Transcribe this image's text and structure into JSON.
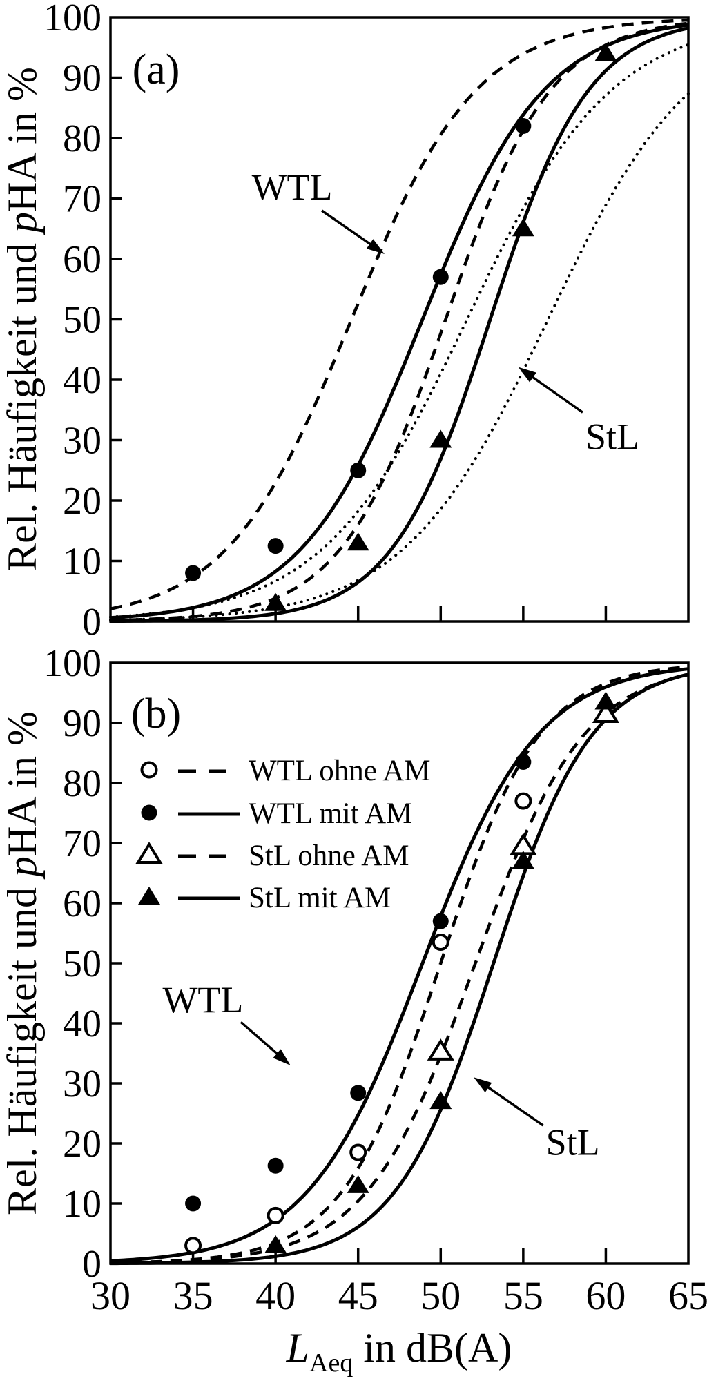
{
  "chart_data": [
    {
      "panel_label": "(a)",
      "type": "line",
      "xlabel": "LAeq in dB(A)",
      "ylabel": "Rel. Häufigkeit und pHA in %",
      "ylabel_parts": {
        "pre": "Rel. Häufigkeit und ",
        "italic": "p",
        "post": "HA in %"
      },
      "xlim": [
        30,
        65
      ],
      "ylim": [
        0,
        100
      ],
      "x_ticks": [
        30,
        35,
        40,
        45,
        50,
        55,
        60,
        65
      ],
      "y_ticks": [
        0,
        10,
        20,
        30,
        40,
        50,
        60,
        70,
        80,
        90,
        100
      ],
      "show_x_tick_labels": false,
      "grid": false,
      "series": [
        {
          "id": "a-wtl-dashed",
          "name": "",
          "group": "WTL",
          "line": "dashed",
          "marker": "none",
          "logistic": {
            "midpoint": 44.6,
            "scale": 3.8
          },
          "points": []
        },
        {
          "id": "a-wtl-solid",
          "name": "",
          "group": "WTL",
          "line": "solid",
          "marker": "circle-filled",
          "logistic": {
            "midpoint": 48.9,
            "scale": 3.7
          },
          "points": [
            [
              35,
              8
            ],
            [
              40,
              12.5
            ],
            [
              45,
              25
            ],
            [
              50,
              57
            ],
            [
              55,
              82
            ]
          ]
        },
        {
          "id": "a-wtl-dotted",
          "name": "",
          "group": "WTL",
          "line": "dotted",
          "marker": "none",
          "logistic": {
            "midpoint": 51.6,
            "scale": 4.4
          },
          "points": []
        },
        {
          "id": "a-stl-dashed",
          "name": "",
          "group": "StL",
          "line": "dashed",
          "marker": "none",
          "logistic": {
            "midpoint": 50.3,
            "scale": 3.2
          },
          "points": []
        },
        {
          "id": "a-stl-solid",
          "name": "",
          "group": "StL",
          "line": "solid",
          "marker": "triangle-filled",
          "logistic": {
            "midpoint": 53.0,
            "scale": 3.0
          },
          "points": [
            [
              40,
              3
            ],
            [
              45,
              13
            ],
            [
              50,
              30
            ],
            [
              55,
              65
            ],
            [
              60,
              94
            ]
          ]
        },
        {
          "id": "a-stl-dotted",
          "name": "",
          "group": "StL",
          "line": "dotted",
          "marker": "none",
          "logistic": {
            "midpoint": 56.5,
            "scale": 4.4
          },
          "points": []
        }
      ],
      "annotations": [
        {
          "text": "WTL",
          "text_at": [
            41.0,
            72.0
          ],
          "arrow_from": [
            42.8,
            68.0
          ],
          "arrow_to": [
            46.6,
            60.8
          ]
        },
        {
          "text": "StL",
          "text_at": [
            60.4,
            30.7
          ],
          "arrow_from": [
            58.6,
            34.6
          ],
          "arrow_to": [
            54.7,
            42.1
          ]
        }
      ]
    },
    {
      "panel_label": "(b)",
      "type": "line",
      "xlabel": "LAeq in dB(A)",
      "xlabel_parts": {
        "main": "L",
        "sub": "Aeq",
        "rest": " in dB(A)"
      },
      "ylabel": "Rel. Häufigkeit und pHA in %",
      "ylabel_parts": {
        "pre": "Rel. Häufigkeit und ",
        "italic": "p",
        "post": "HA in %"
      },
      "xlim": [
        30,
        65
      ],
      "ylim": [
        0,
        100
      ],
      "x_ticks": [
        30,
        35,
        40,
        45,
        50,
        55,
        60,
        65
      ],
      "y_ticks": [
        0,
        10,
        20,
        30,
        40,
        50,
        60,
        70,
        80,
        90,
        100
      ],
      "show_x_tick_labels": true,
      "grid": false,
      "series": [
        {
          "id": "b-wtl-ohne",
          "name": "WTL ohne AM",
          "group": "WTL",
          "line": "dashed",
          "marker": "circle-open",
          "logistic": {
            "midpoint": 50.0,
            "scale": 3.0
          },
          "points": [
            [
              35,
              3
            ],
            [
              40,
              8
            ],
            [
              45,
              18.5
            ],
            [
              50,
              53.5
            ],
            [
              55,
              77
            ]
          ]
        },
        {
          "id": "b-wtl-mit",
          "name": "WTL mit AM",
          "group": "WTL",
          "line": "solid",
          "marker": "circle-filled",
          "logistic": {
            "midpoint": 48.9,
            "scale": 3.5
          },
          "points": [
            [
              35,
              10
            ],
            [
              40,
              16.3
            ],
            [
              45,
              28.4
            ],
            [
              50,
              57
            ],
            [
              55,
              83.5
            ]
          ]
        },
        {
          "id": "b-stl-ohne",
          "name": "StL ohne AM",
          "group": "StL",
          "line": "dashed",
          "marker": "triangle-open",
          "logistic": {
            "midpoint": 52.1,
            "scale": 3.3
          },
          "points": [
            [
              50,
              35.3
            ],
            [
              55,
              69.5
            ],
            [
              60,
              91.5
            ]
          ]
        },
        {
          "id": "b-stl-mit",
          "name": "StL mit AM",
          "group": "StL",
          "line": "solid",
          "marker": "triangle-filled",
          "logistic": {
            "midpoint": 53.2,
            "scale": 3.0
          },
          "points": [
            [
              40,
              3
            ],
            [
              45,
              13
            ],
            [
              50,
              27
            ],
            [
              55,
              67
            ],
            [
              60,
              93.5
            ]
          ]
        }
      ],
      "legend": {
        "position": "upper-left-inside",
        "items": [
          {
            "label": "WTL ohne AM",
            "marker": "circle-open",
            "line": "dashed"
          },
          {
            "label": "WTL mit AM",
            "marker": "circle-filled",
            "line": "solid"
          },
          {
            "label": "StL ohne AM",
            "marker": "triangle-open",
            "line": "dashed"
          },
          {
            "label": "StL mit AM",
            "marker": "triangle-filled",
            "line": "solid"
          }
        ]
      },
      "annotations": [
        {
          "text": "WTL",
          "text_at": [
            35.6,
            44.0
          ],
          "arrow_from": [
            37.9,
            40.2
          ],
          "arrow_to": [
            40.9,
            33.0
          ]
        },
        {
          "text": "StL",
          "text_at": [
            58.0,
            20.3
          ],
          "arrow_from": [
            56.2,
            23.0
          ],
          "arrow_to": [
            52.0,
            31.0
          ]
        }
      ]
    }
  ]
}
